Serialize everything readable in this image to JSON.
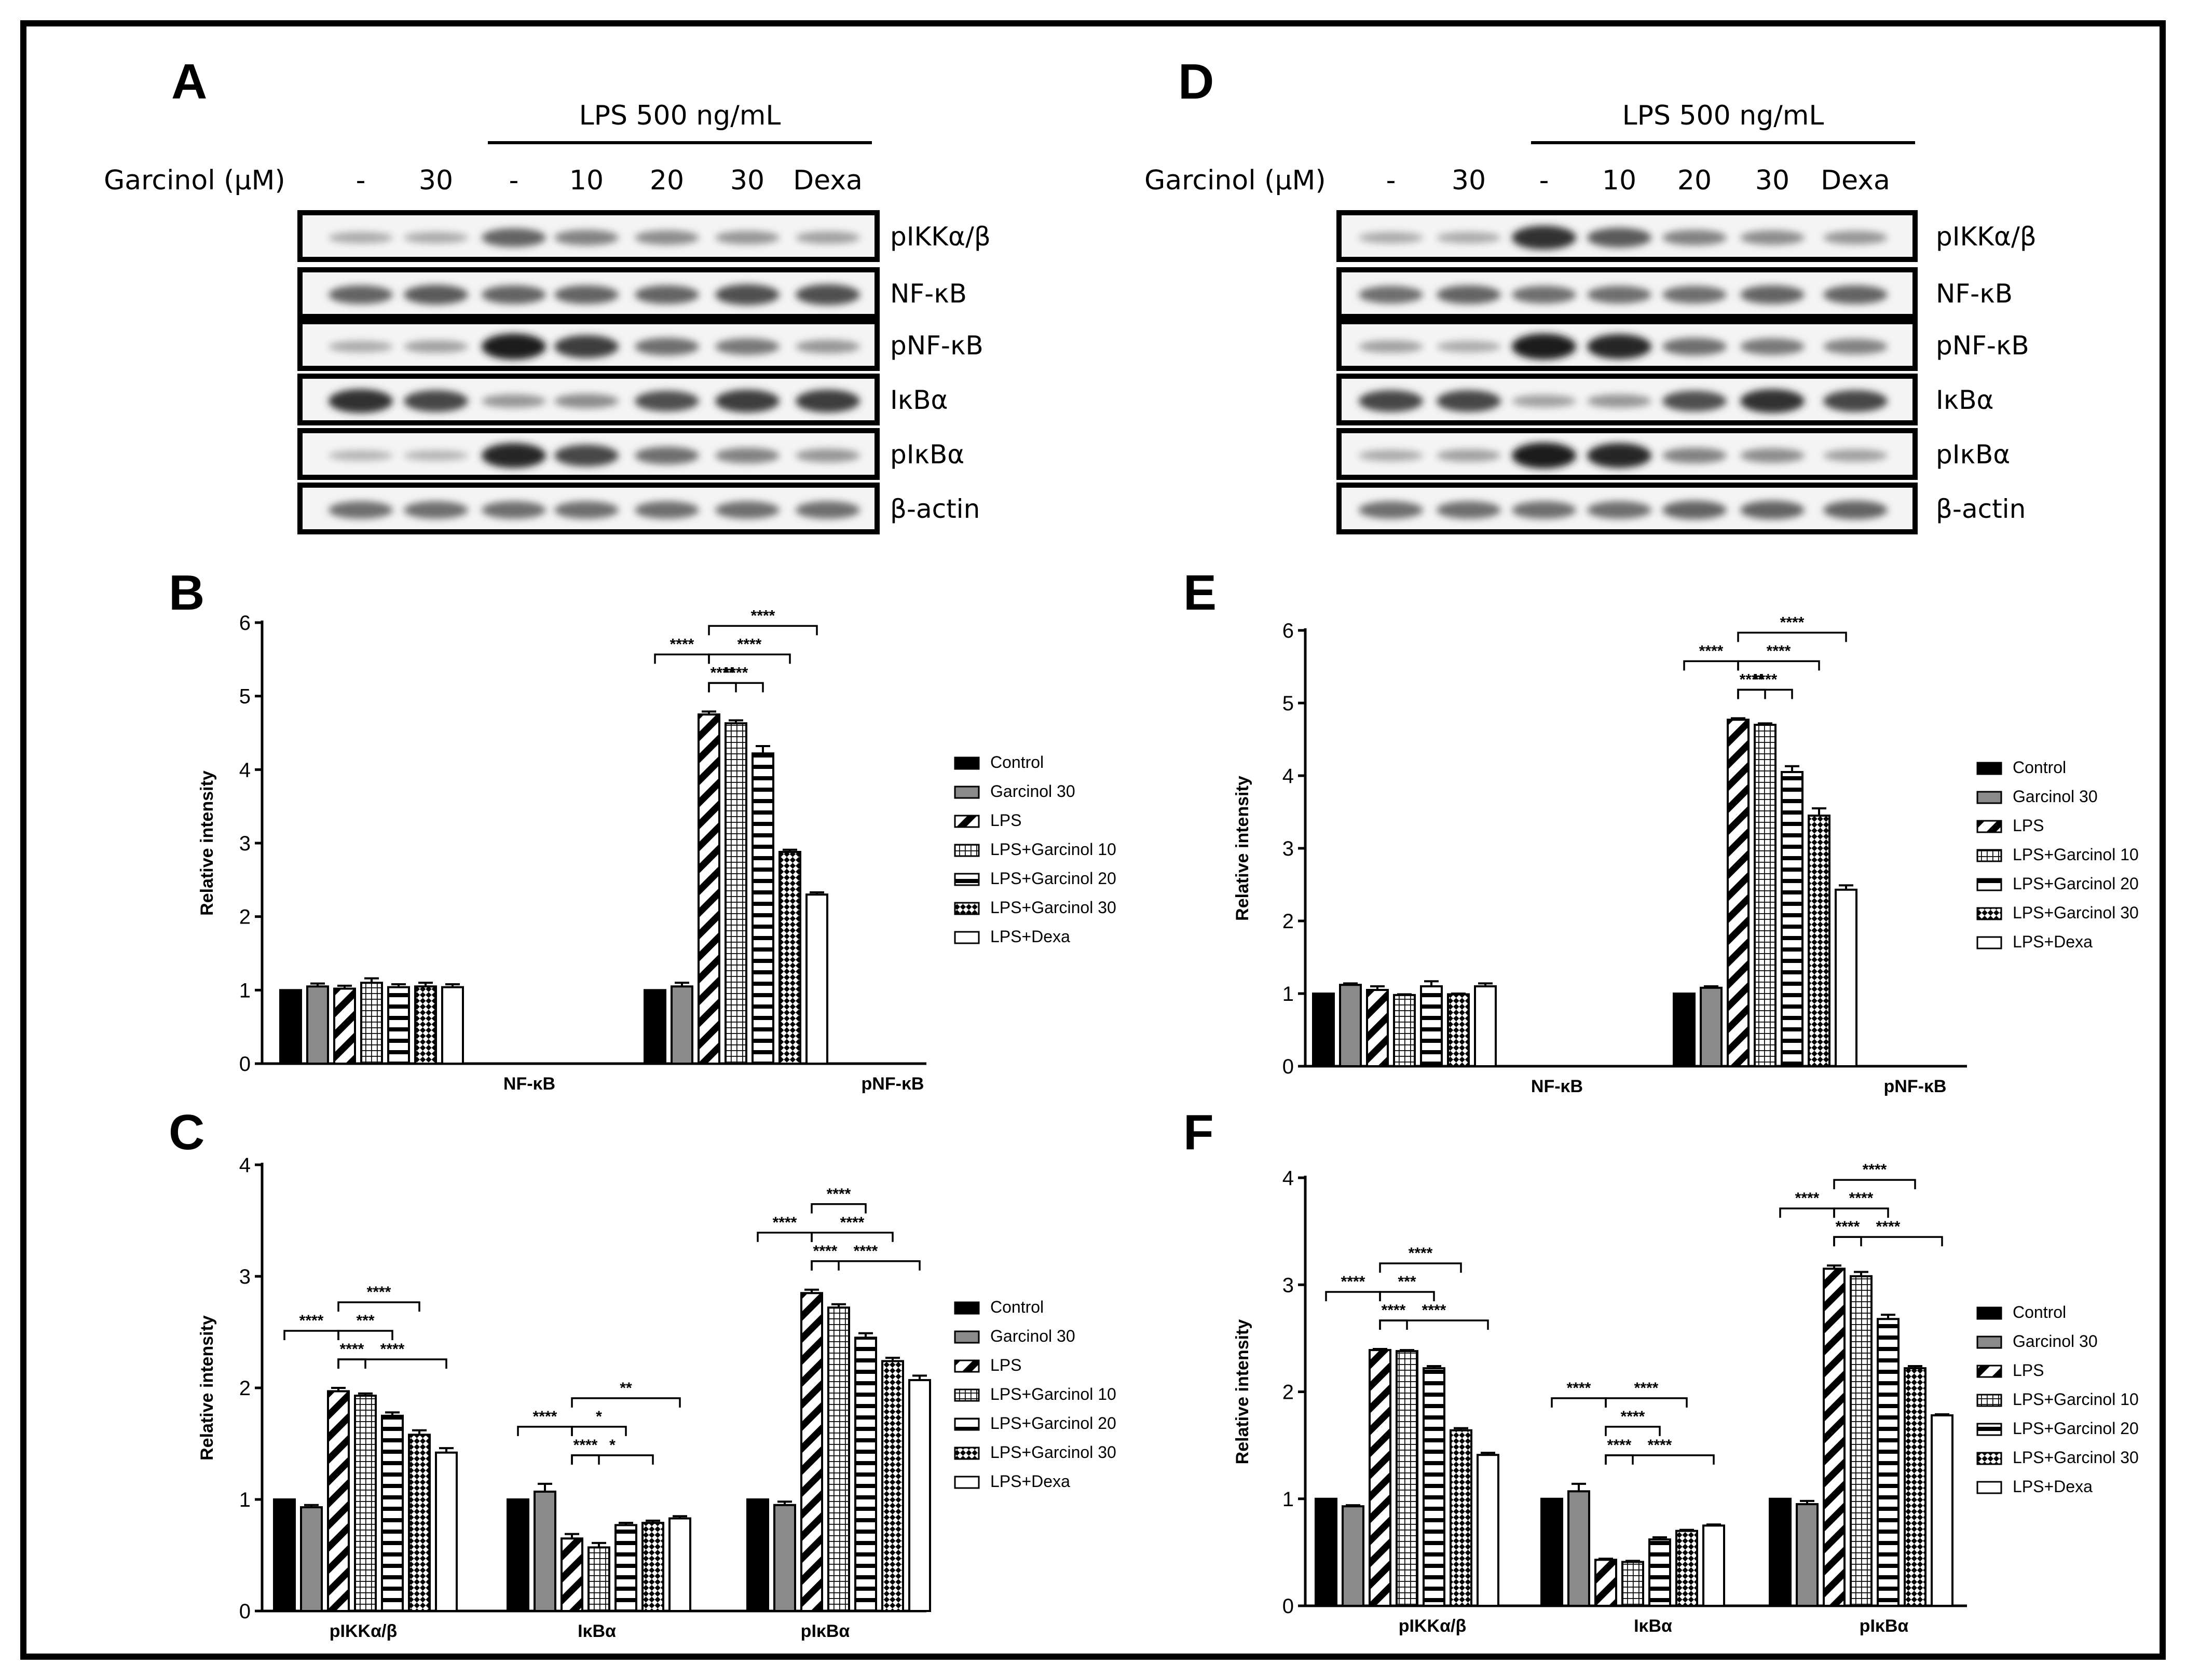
{
  "figure": {
    "blots": [
      {
        "panel": "A",
        "treatment": "LPS 500 ng/mL",
        "row_title": "Garcinol (μM)",
        "lanes": [
          "-",
          "30",
          "-",
          "10",
          "20",
          "30",
          "Dexa"
        ],
        "proteins": [
          "pIKKα/β",
          "NF-κB",
          "pNF-κB",
          "IκBα",
          "pIκBα",
          "β-actin"
        ]
      },
      {
        "panel": "D",
        "treatment": "LPS 500 ng/mL",
        "row_title": "Garcinol (μM)",
        "lanes": [
          "-",
          "30",
          "-",
          "10",
          "20",
          "30",
          "Dexa"
        ],
        "proteins": [
          "pIKKα/β",
          "NF-κB",
          "pNF-κB",
          "IκBα",
          "pIκBα",
          "β-actin"
        ]
      }
    ]
  },
  "chart_data": [
    {
      "panel": "B",
      "type": "bar",
      "title": "",
      "xlabel": "",
      "ylabel": "Relative intensity",
      "ylim": [
        0,
        6
      ],
      "yticks": [
        "0",
        "1",
        "2",
        "3",
        "4",
        "5",
        "6"
      ],
      "categories": [
        "NF-κB",
        "pNF-κB"
      ],
      "legend_position": "right",
      "series": [
        {
          "name": "Control",
          "values": [
            1.0,
            1.0
          ],
          "errors": [
            0.0,
            0.0
          ]
        },
        {
          "name": "Garcinol 30",
          "values": [
            1.05,
            1.05
          ],
          "errors": [
            0.04,
            0.05
          ]
        },
        {
          "name": "LPS",
          "values": [
            1.02,
            4.75
          ],
          "errors": [
            0.04,
            0.04
          ]
        },
        {
          "name": "LPS+Garcinol 10",
          "values": [
            1.1,
            4.63
          ],
          "errors": [
            0.06,
            0.04
          ]
        },
        {
          "name": "LPS+Garcinol 20",
          "values": [
            1.04,
            4.22
          ],
          "errors": [
            0.04,
            0.1
          ]
        },
        {
          "name": "LPS+Garcinol 30",
          "values": [
            1.05,
            2.88
          ],
          "errors": [
            0.05,
            0.03
          ]
        },
        {
          "name": "LPS+Dexa",
          "values": [
            1.04,
            2.3
          ],
          "errors": [
            0.04,
            0.03
          ]
        }
      ],
      "significance": [
        {
          "group": 1,
          "from": 2,
          "to": 3,
          "label": "****",
          "tier": 1
        },
        {
          "group": 1,
          "from": 0,
          "to": 2,
          "label": "****",
          "tier": 2
        },
        {
          "group": 1,
          "from": 2,
          "to": 4,
          "label": "****",
          "tier": 1
        },
        {
          "group": 1,
          "from": 2,
          "to": 5,
          "label": "****",
          "tier": 2
        },
        {
          "group": 1,
          "from": 2,
          "to": 6,
          "label": "****",
          "tier": 3
        }
      ]
    },
    {
      "panel": "C",
      "type": "bar",
      "title": "",
      "xlabel": "",
      "ylabel": "Relative intensity",
      "ylim": [
        0,
        4
      ],
      "yticks": [
        "0",
        "1",
        "2",
        "3",
        "4"
      ],
      "categories": [
        "pIKKα/β",
        "IκBα",
        "pIκBα"
      ],
      "legend_position": "right",
      "series": [
        {
          "name": "Control",
          "values": [
            1.0,
            1.0,
            1.0
          ],
          "errors": [
            0.0,
            0.0,
            0.0
          ]
        },
        {
          "name": "Garcinol 30",
          "values": [
            0.93,
            1.07,
            0.95
          ],
          "errors": [
            0.02,
            0.07,
            0.03
          ]
        },
        {
          "name": "LPS",
          "values": [
            1.97,
            0.65,
            2.85
          ],
          "errors": [
            0.03,
            0.04,
            0.03
          ]
        },
        {
          "name": "LPS+Garcinol 10",
          "values": [
            1.93,
            0.57,
            2.72
          ],
          "errors": [
            0.02,
            0.04,
            0.03
          ]
        },
        {
          "name": "LPS+Garcinol 20",
          "values": [
            1.75,
            0.77,
            2.45
          ],
          "errors": [
            0.03,
            0.02,
            0.04
          ]
        },
        {
          "name": "LPS+Garcinol 30",
          "values": [
            1.58,
            0.79,
            2.24
          ],
          "errors": [
            0.04,
            0.02,
            0.03
          ]
        },
        {
          "name": "LPS+Dexa",
          "values": [
            1.42,
            0.83,
            2.07
          ],
          "errors": [
            0.04,
            0.02,
            0.04
          ]
        }
      ],
      "significance": [
        {
          "group": 0,
          "from": 0,
          "to": 2,
          "label": "****",
          "tier": 2
        },
        {
          "group": 0,
          "from": 2,
          "to": 3,
          "label": "****",
          "tier": 1
        },
        {
          "group": 0,
          "from": 2,
          "to": 4,
          "label": "***",
          "tier": 2
        },
        {
          "group": 0,
          "from": 2,
          "to": 5,
          "label": "****",
          "tier": 3
        },
        {
          "group": 0,
          "from": 2,
          "to": 6,
          "label": "****",
          "tier": 1
        },
        {
          "group": 1,
          "from": 0,
          "to": 2,
          "label": "****",
          "tier": 2
        },
        {
          "group": 1,
          "from": 2,
          "to": 3,
          "label": "****",
          "tier": 1
        },
        {
          "group": 1,
          "from": 2,
          "to": 4,
          "label": "*",
          "tier": 2
        },
        {
          "group": 1,
          "from": 2,
          "to": 6,
          "label": "**",
          "tier": 3
        },
        {
          "group": 1,
          "from": 2,
          "to": 5,
          "label": "*",
          "tier": 1
        },
        {
          "group": 2,
          "from": 0,
          "to": 2,
          "label": "****",
          "tier": 2
        },
        {
          "group": 2,
          "from": 2,
          "to": 3,
          "label": "****",
          "tier": 1
        },
        {
          "group": 2,
          "from": 2,
          "to": 5,
          "label": "****",
          "tier": 2
        },
        {
          "group": 2,
          "from": 2,
          "to": 4,
          "label": "****",
          "tier": 3
        },
        {
          "group": 2,
          "from": 2,
          "to": 6,
          "label": "****",
          "tier": 1
        }
      ]
    },
    {
      "panel": "E",
      "type": "bar",
      "title": "",
      "xlabel": "",
      "ylabel": "Relative intensity",
      "ylim": [
        0,
        6
      ],
      "yticks": [
        "0",
        "1",
        "2",
        "3",
        "4",
        "5",
        "6"
      ],
      "categories": [
        "NF-κB",
        "pNF-κB"
      ],
      "legend_position": "right",
      "series": [
        {
          "name": "Control",
          "values": [
            1.0,
            1.0
          ],
          "errors": [
            0.0,
            0.0
          ]
        },
        {
          "name": "Garcinol 30",
          "values": [
            1.12,
            1.08
          ],
          "errors": [
            0.02,
            0.02
          ]
        },
        {
          "name": "LPS",
          "values": [
            1.05,
            4.77
          ],
          "errors": [
            0.05,
            0.02
          ]
        },
        {
          "name": "LPS+Garcinol 10",
          "values": [
            0.98,
            4.7
          ],
          "errors": [
            0.01,
            0.02
          ]
        },
        {
          "name": "LPS+Garcinol 20",
          "values": [
            1.1,
            4.05
          ],
          "errors": [
            0.07,
            0.08
          ]
        },
        {
          "name": "LPS+Garcinol 30",
          "values": [
            0.99,
            3.45
          ],
          "errors": [
            0.01,
            0.1
          ]
        },
        {
          "name": "LPS+Dexa",
          "values": [
            1.1,
            2.43
          ],
          "errors": [
            0.04,
            0.06
          ]
        }
      ],
      "significance": [
        {
          "group": 1,
          "from": 2,
          "to": 3,
          "label": "****",
          "tier": 1
        },
        {
          "group": 1,
          "from": 0,
          "to": 2,
          "label": "****",
          "tier": 2
        },
        {
          "group": 1,
          "from": 2,
          "to": 4,
          "label": "****",
          "tier": 1
        },
        {
          "group": 1,
          "from": 2,
          "to": 5,
          "label": "****",
          "tier": 2
        },
        {
          "group": 1,
          "from": 2,
          "to": 6,
          "label": "****",
          "tier": 3
        }
      ]
    },
    {
      "panel": "F",
      "type": "bar",
      "title": "",
      "xlabel": "",
      "ylabel": "Relative intensity",
      "ylim": [
        0,
        4
      ],
      "yticks": [
        "0",
        "1",
        "2",
        "3",
        "4"
      ],
      "categories": [
        "pIKKα/β",
        "IκBα",
        "pIκBα"
      ],
      "legend_position": "right",
      "series": [
        {
          "name": "Control",
          "values": [
            1.0,
            1.0,
            1.0
          ],
          "errors": [
            0.0,
            0.0,
            0.0
          ]
        },
        {
          "name": "Garcinol 30",
          "values": [
            0.93,
            1.07,
            0.95
          ],
          "errors": [
            0.01,
            0.07,
            0.03
          ]
        },
        {
          "name": "LPS",
          "values": [
            2.39,
            0.43,
            3.15
          ],
          "errors": [
            0.01,
            0.01,
            0.03
          ]
        },
        {
          "name": "LPS+Garcinol 10",
          "values": [
            2.38,
            0.41,
            3.08
          ],
          "errors": [
            0.01,
            0.01,
            0.04
          ]
        },
        {
          "name": "LPS+Garcinol 20",
          "values": [
            2.22,
            0.62,
            2.68
          ],
          "errors": [
            0.02,
            0.02,
            0.04
          ]
        },
        {
          "name": "LPS+Garcinol 30",
          "values": [
            1.64,
            0.7,
            2.22
          ],
          "errors": [
            0.02,
            0.01,
            0.02
          ]
        },
        {
          "name": "LPS+Dexa",
          "values": [
            1.41,
            0.75,
            1.78
          ],
          "errors": [
            0.02,
            0.01,
            0.01
          ]
        }
      ],
      "significance": [
        {
          "group": 0,
          "from": 0,
          "to": 2,
          "label": "****",
          "tier": 2
        },
        {
          "group": 0,
          "from": 2,
          "to": 3,
          "label": "****",
          "tier": 1
        },
        {
          "group": 0,
          "from": 2,
          "to": 4,
          "label": "***",
          "tier": 2
        },
        {
          "group": 0,
          "from": 2,
          "to": 5,
          "label": "****",
          "tier": 3
        },
        {
          "group": 0,
          "from": 2,
          "to": 6,
          "label": "****",
          "tier": 1
        },
        {
          "group": 1,
          "from": 0,
          "to": 2,
          "label": "****",
          "tier": 3
        },
        {
          "group": 1,
          "from": 2,
          "to": 3,
          "label": "****",
          "tier": 1
        },
        {
          "group": 1,
          "from": 2,
          "to": 4,
          "label": "****",
          "tier": 2
        },
        {
          "group": 1,
          "from": 2,
          "to": 5,
          "label": "****",
          "tier": 3
        },
        {
          "group": 1,
          "from": 2,
          "to": 6,
          "label": "****",
          "tier": 1
        },
        {
          "group": 2,
          "from": 0,
          "to": 2,
          "label": "****",
          "tier": 2
        },
        {
          "group": 2,
          "from": 2,
          "to": 3,
          "label": "****",
          "tier": 1
        },
        {
          "group": 2,
          "from": 2,
          "to": 4,
          "label": "****",
          "tier": 2
        },
        {
          "group": 2,
          "from": 2,
          "to": 5,
          "label": "****",
          "tier": 3
        },
        {
          "group": 2,
          "from": 2,
          "to": 6,
          "label": "****",
          "tier": 1
        }
      ]
    }
  ]
}
